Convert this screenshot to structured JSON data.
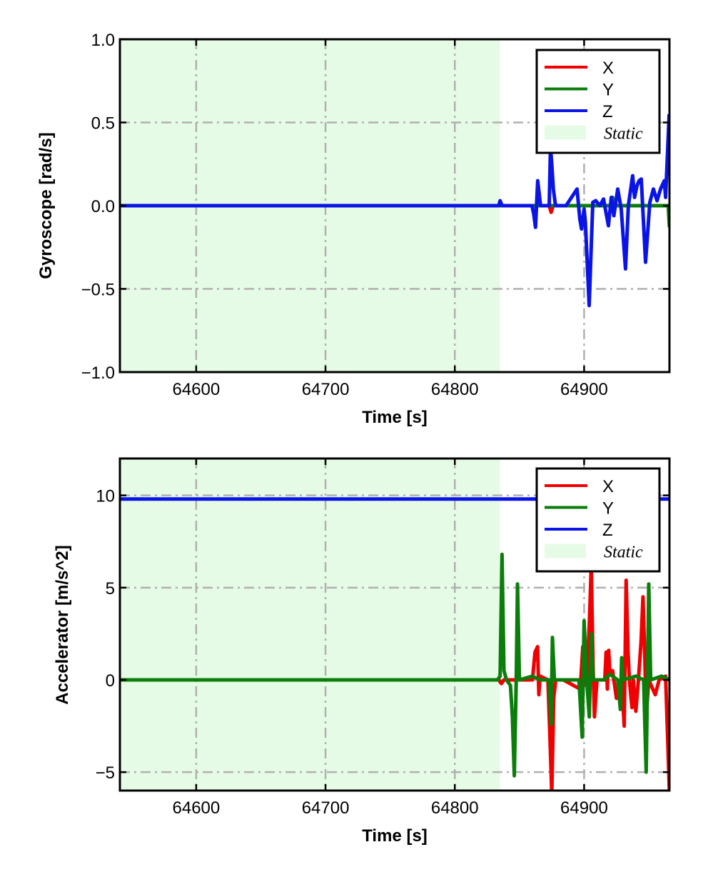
{
  "colors": {
    "X": "#f00000",
    "Y": "#0a7d0a",
    "Z": "#0a14e6",
    "static": "#e6fbe6",
    "grid": "#b0b0b0"
  },
  "chart_data": [
    {
      "type": "line",
      "xlabel": "Time [s]",
      "ylabel": "Gyroscope [rad/s]",
      "xlim": [
        64541,
        64966
      ],
      "ylim": [
        -1.0,
        1.0
      ],
      "xticks": [
        64600,
        64700,
        64800,
        64900
      ],
      "xtick_labels": [
        "64600",
        "64700",
        "64800",
        "64900"
      ],
      "yticks": [
        -1.0,
        -0.5,
        0.0,
        0.5,
        1.0
      ],
      "ytick_labels": [
        "−1.0",
        "−0.5",
        "0.0",
        "0.5",
        "1.0"
      ],
      "grid": true,
      "legend_position": "top-right",
      "legend": [
        "X",
        "Y",
        "Z",
        "Static"
      ],
      "static_region": [
        64541,
        64835
      ],
      "series": [
        {
          "name": "X",
          "points": [
            [
              64541,
              0
            ],
            [
              64873,
              0
            ],
            [
              64874.5,
              -0.04
            ],
            [
              64876,
              0
            ],
            [
              64920,
              0
            ],
            [
              64921,
              -0.03
            ],
            [
              64922,
              0
            ],
            [
              64966,
              0
            ]
          ]
        },
        {
          "name": "Y",
          "points": [
            [
              64541,
              0
            ],
            [
              64921,
              0
            ],
            [
              64922,
              0.05
            ],
            [
              64923,
              0
            ],
            [
              64965,
              0
            ],
            [
              64966,
              -0.13
            ]
          ]
        },
        {
          "name": "Z",
          "points": [
            [
              64541,
              0
            ],
            [
              64834,
              0
            ],
            [
              64835,
              0.03
            ],
            [
              64836.5,
              0
            ],
            [
              64859.7,
              0
            ],
            [
              64861,
              -0.05
            ],
            [
              64862.4,
              -0.13
            ],
            [
              64864.1,
              0.15
            ],
            [
              64866.3,
              0
            ],
            [
              64873,
              0
            ],
            [
              64874,
              0.35
            ],
            [
              64875,
              0.25
            ],
            [
              64876.2,
              0.1
            ],
            [
              64877.9,
              0
            ],
            [
              64884.5,
              0
            ],
            [
              64886,
              0
            ],
            [
              64894.5,
              0.1
            ],
            [
              64896.7,
              -0.08
            ],
            [
              64898,
              -0.14
            ],
            [
              64900,
              -0.02
            ],
            [
              64901,
              -0.1
            ],
            [
              64903.9,
              -0.6
            ],
            [
              64906.7,
              0.02
            ],
            [
              64909,
              0.03
            ],
            [
              64912.2,
              0
            ],
            [
              64915,
              0.04
            ],
            [
              64918.8,
              -0.12
            ],
            [
              64921,
              0.05
            ],
            [
              64923,
              -0.06
            ],
            [
              64926,
              0.1
            ],
            [
              64928.7,
              -0.02
            ],
            [
              64932,
              -0.38
            ],
            [
              64934.2,
              0
            ],
            [
              64937.5,
              0.18
            ],
            [
              64939,
              0.05
            ],
            [
              64940.9,
              0.12
            ],
            [
              64942.5,
              0.15
            ],
            [
              64944.2,
              0.16
            ],
            [
              64947.5,
              -0.34
            ],
            [
              64950.8,
              0.02
            ],
            [
              64953.6,
              0.1
            ],
            [
              64956.4,
              0.03
            ],
            [
              64959.1,
              0.1
            ],
            [
              64962,
              0.15
            ],
            [
              64963,
              0.05
            ],
            [
              64965.8,
              0.55
            ]
          ]
        }
      ]
    },
    {
      "type": "line",
      "xlabel": "Time [s]",
      "ylabel": "Accelerator [m/s^2]",
      "xlim": [
        64541,
        64966
      ],
      "ylim": [
        -6.0,
        12.0
      ],
      "xticks": [
        64600,
        64700,
        64800,
        64900
      ],
      "xtick_labels": [
        "64600",
        "64700",
        "64800",
        "64900"
      ],
      "yticks": [
        -5,
        0,
        5,
        10
      ],
      "ytick_labels": [
        "−5",
        "0",
        "5",
        "10"
      ],
      "grid": true,
      "legend_position": "top-right",
      "legend": [
        "X",
        "Y",
        "Z",
        "Static"
      ],
      "static_region": [
        64541,
        64835
      ],
      "series": [
        {
          "name": "X",
          "points": [
            [
              64541,
              0
            ],
            [
              64834,
              0
            ],
            [
              64836,
              -0.2
            ],
            [
              64838,
              0
            ],
            [
              64860,
              0
            ],
            [
              64862,
              1.5
            ],
            [
              64864,
              1.8
            ],
            [
              64865,
              -0.8
            ],
            [
              64866,
              0.2
            ],
            [
              64872,
              0
            ],
            [
              64874,
              -4
            ],
            [
              64875,
              -6.2
            ],
            [
              64876.5,
              -1
            ],
            [
              64878,
              0
            ],
            [
              64884,
              0
            ],
            [
              64897,
              -0.5
            ],
            [
              64899,
              1.8
            ],
            [
              64900,
              -0.3
            ],
            [
              64902,
              0
            ],
            [
              64904,
              3
            ],
            [
              64905.5,
              6.2
            ],
            [
              64907,
              0.5
            ],
            [
              64908,
              -2
            ],
            [
              64910,
              0
            ],
            [
              64916,
              0
            ],
            [
              64917,
              1.5
            ],
            [
              64918,
              -0.5
            ],
            [
              64919,
              1.6
            ],
            [
              64920,
              0.3
            ],
            [
              64922,
              0.5
            ],
            [
              64925,
              -1
            ],
            [
              64927,
              -0.5
            ],
            [
              64929,
              0
            ],
            [
              64931,
              -2.5
            ],
            [
              64932.5,
              5.4
            ],
            [
              64934,
              1.5
            ],
            [
              64935,
              0
            ],
            [
              64937,
              -1.5
            ],
            [
              64938,
              0
            ],
            [
              64940,
              -1.7
            ],
            [
              64942,
              0
            ],
            [
              64944,
              2
            ],
            [
              64945.5,
              4.5
            ],
            [
              64947,
              1
            ],
            [
              64948,
              -2
            ],
            [
              64950,
              0
            ],
            [
              64955,
              -0.8
            ],
            [
              64958,
              0
            ],
            [
              64963,
              0.2
            ],
            [
              64966,
              -6.2
            ]
          ]
        },
        {
          "name": "Y",
          "points": [
            [
              64541,
              0
            ],
            [
              64833,
              0
            ],
            [
              64835,
              0.2
            ],
            [
              64836.5,
              6.8
            ],
            [
              64838,
              0.5
            ],
            [
              64840,
              0
            ],
            [
              64843,
              -0.3
            ],
            [
              64844.5,
              -2
            ],
            [
              64846,
              -5.2
            ],
            [
              64847.5,
              0
            ],
            [
              64848.5,
              5.2
            ],
            [
              64850,
              0
            ],
            [
              64860,
              0.2
            ],
            [
              64866,
              0
            ],
            [
              64873,
              0
            ],
            [
              64874.5,
              -2.4
            ],
            [
              64875.5,
              2.3
            ],
            [
              64877,
              0
            ],
            [
              64890,
              0
            ],
            [
              64896,
              0
            ],
            [
              64898.5,
              -3.1
            ],
            [
              64900,
              3.2
            ],
            [
              64902,
              0
            ],
            [
              64904,
              -2
            ],
            [
              64905.5,
              2.5
            ],
            [
              64907,
              0
            ],
            [
              64915,
              0
            ],
            [
              64920,
              0.3
            ],
            [
              64926,
              0
            ],
            [
              64928,
              -1.6
            ],
            [
              64929,
              1.2
            ],
            [
              64930,
              0
            ],
            [
              64940,
              0.2
            ],
            [
              64946,
              0
            ],
            [
              64948,
              -5
            ],
            [
              64950,
              5.2
            ],
            [
              64951.5,
              0
            ],
            [
              64960,
              0.2
            ],
            [
              64966,
              0
            ]
          ]
        },
        {
          "name": "Z",
          "points": [
            [
              64541,
              9.8
            ],
            [
              64966,
              9.8
            ]
          ]
        }
      ]
    }
  ]
}
